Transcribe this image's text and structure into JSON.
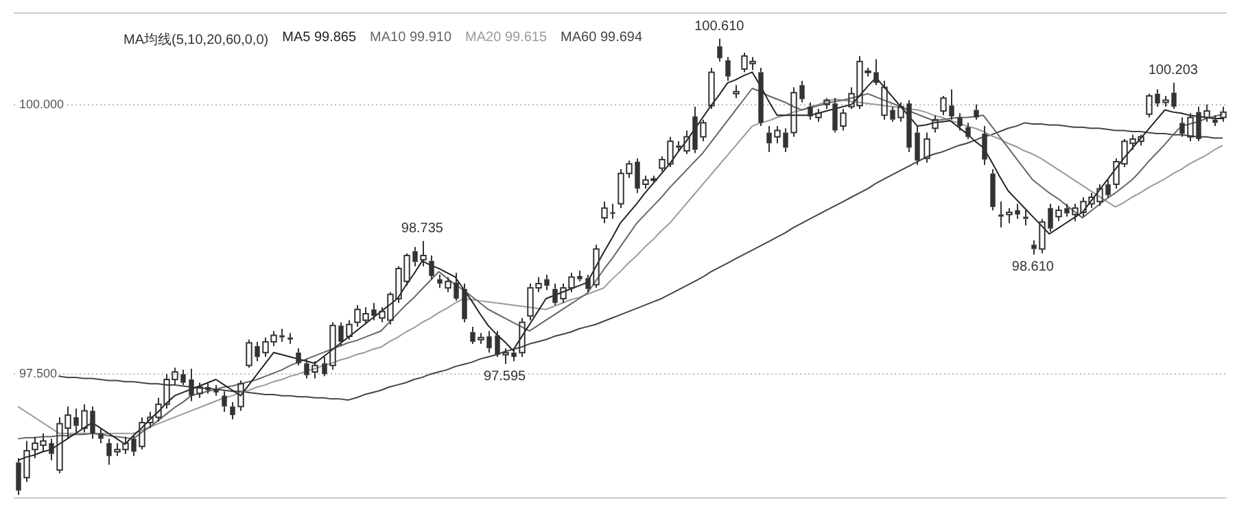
{
  "chart_data": {
    "type": "candlestick",
    "subtitle": "MA均线(5,10,20,60,0,0)",
    "categories": [
      null,
      null,
      null,
      null,
      null,
      null,
      null,
      null,
      null,
      null,
      null,
      null,
      null,
      null,
      null,
      null,
      null,
      null,
      null,
      null,
      null,
      null,
      null,
      null,
      null,
      null,
      null,
      null,
      null,
      null,
      null,
      null,
      null,
      null,
      null,
      null,
      null,
      null,
      null,
      null,
      null,
      null,
      null,
      null,
      null,
      null,
      null,
      null,
      null,
      null,
      null,
      null,
      null,
      null,
      null,
      null,
      null,
      null,
      null,
      null,
      null,
      null,
      null,
      null,
      null,
      null,
      null,
      null,
      null,
      null,
      null,
      null,
      null,
      null,
      null,
      null,
      null,
      null,
      null,
      null,
      null,
      null,
      null,
      null,
      null,
      null,
      null,
      null,
      null,
      null,
      null,
      null,
      null,
      null,
      null,
      null,
      null,
      null,
      null,
      null,
      null,
      null,
      null,
      null,
      null,
      null,
      null,
      null,
      null,
      null,
      null,
      null,
      null,
      null,
      null,
      null,
      null,
      null,
      null,
      null,
      null,
      null,
      null,
      null,
      null,
      null,
      null,
      null,
      null,
      null,
      null,
      null,
      null,
      null,
      null,
      null,
      null,
      null,
      null,
      null,
      null,
      null,
      null,
      null,
      null,
      null,
      null
    ],
    "color": "#333333",
    "ohlc": [
      [
        96.68,
        96.72,
        96.38,
        96.42
      ],
      [
        96.54,
        96.88,
        96.5,
        96.79
      ],
      [
        96.8,
        96.92,
        96.72,
        96.86
      ],
      [
        96.84,
        96.95,
        96.78,
        96.88
      ],
      [
        96.86,
        96.9,
        96.7,
        96.76
      ],
      [
        96.61,
        97.1,
        96.58,
        97.04
      ],
      [
        97,
        97.2,
        96.9,
        97.12
      ],
      [
        97.1,
        97.18,
        96.95,
        97.02
      ],
      [
        97,
        97.22,
        96.96,
        97.16
      ],
      [
        97.16,
        97.2,
        96.9,
        96.95
      ],
      [
        96.95,
        96.99,
        96.86,
        96.9
      ],
      [
        96.86,
        96.9,
        96.66,
        96.74
      ],
      [
        96.78,
        96.86,
        96.74,
        96.8
      ],
      [
        96.8,
        96.92,
        96.76,
        96.86
      ],
      [
        96.9,
        96.94,
        96.74,
        96.78
      ],
      [
        96.83,
        97.1,
        96.8,
        97.05
      ],
      [
        97.05,
        97.15,
        97,
        97.1
      ],
      [
        97.1,
        97.28,
        97.06,
        97.22
      ],
      [
        97.22,
        97.5,
        97.18,
        97.45
      ],
      [
        97.45,
        97.56,
        97.4,
        97.52
      ],
      [
        97.5,
        97.54,
        97.4,
        97.42
      ],
      [
        97.45,
        97.55,
        97.25,
        97.3
      ],
      [
        97.32,
        97.42,
        97.28,
        97.38
      ],
      [
        97.38,
        97.42,
        97.32,
        97.35
      ],
      [
        97.36,
        97.4,
        97.3,
        97.33
      ],
      [
        97.3,
        97.34,
        97.15,
        97.2
      ],
      [
        97.2,
        97.24,
        97.08,
        97.12
      ],
      [
        97.2,
        97.44,
        97.16,
        97.41
      ],
      [
        97.58,
        97.82,
        97.56,
        97.79
      ],
      [
        97.76,
        97.8,
        97.62,
        97.66
      ],
      [
        97.7,
        97.84,
        97.66,
        97.8
      ],
      [
        97.8,
        97.9,
        97.76,
        97.86
      ],
      [
        97.86,
        97.92,
        97.8,
        97.84
      ],
      [
        97.84,
        97.88,
        97.78,
        97.82
      ],
      [
        97.7,
        97.74,
        97.58,
        97.6
      ],
      [
        97.6,
        97.64,
        97.46,
        97.49
      ],
      [
        97.52,
        97.62,
        97.46,
        97.58
      ],
      [
        97.6,
        97.66,
        97.48,
        97.5
      ],
      [
        97.58,
        97.98,
        97.54,
        97.95
      ],
      [
        97.95,
        97.98,
        97.76,
        97.8
      ],
      [
        97.85,
        98,
        97.82,
        97.96
      ],
      [
        97.98,
        98.14,
        97.94,
        98.1
      ],
      [
        98,
        98.12,
        97.96,
        98.06
      ],
      [
        98.1,
        98.16,
        98,
        98.04
      ],
      [
        98.02,
        98.12,
        97.98,
        98.08
      ],
      [
        98,
        98.26,
        97.96,
        98.24
      ],
      [
        98.2,
        98.5,
        98.16,
        98.48
      ],
      [
        98.36,
        98.62,
        98.32,
        98.6
      ],
      [
        98.64,
        98.68,
        98.5,
        98.54
      ],
      [
        98.56,
        98.735,
        98.5,
        98.6
      ],
      [
        98.55,
        98.6,
        98.38,
        98.41
      ],
      [
        98.38,
        98.42,
        98.3,
        98.34
      ],
      [
        98.3,
        98.4,
        98.26,
        98.36
      ],
      [
        98.35,
        98.44,
        98.18,
        98.2
      ],
      [
        98.29,
        98.34,
        97.98,
        98.01
      ],
      [
        97.89,
        97.94,
        97.78,
        97.8
      ],
      [
        97.82,
        97.88,
        97.78,
        97.84
      ],
      [
        97.85,
        97.9,
        97.7,
        97.74
      ],
      [
        97.86,
        97.9,
        97.66,
        97.68
      ],
      [
        97.68,
        97.74,
        97.595,
        97.7
      ],
      [
        97.7,
        97.74,
        97.62,
        97.66
      ],
      [
        97.7,
        98.02,
        97.66,
        97.98
      ],
      [
        98.04,
        98.34,
        98,
        98.3
      ],
      [
        98.3,
        98.4,
        98.26,
        98.34
      ],
      [
        98.38,
        98.42,
        98.28,
        98.32
      ],
      [
        98.29,
        98.34,
        98.14,
        98.16
      ],
      [
        98.2,
        98.34,
        98.16,
        98.3
      ],
      [
        98.3,
        98.44,
        98.26,
        98.4
      ],
      [
        98.41,
        98.46,
        98.36,
        98.38
      ],
      [
        98.39,
        98.42,
        98.26,
        98.29
      ],
      [
        98.33,
        98.7,
        98.3,
        98.66
      ],
      [
        98.95,
        99.1,
        98.9,
        99.04
      ],
      [
        99,
        99.08,
        98.94,
        98.99
      ],
      [
        99.08,
        99.4,
        99.04,
        99.36
      ],
      [
        99.36,
        99.48,
        99.32,
        99.45
      ],
      [
        99.47,
        99.5,
        99.18,
        99.22
      ],
      [
        99.26,
        99.34,
        99.22,
        99.3
      ],
      [
        99.3,
        99.34,
        99.28,
        99.31
      ],
      [
        99.41,
        99.52,
        99.38,
        99.49
      ],
      [
        99.45,
        99.7,
        99.42,
        99.66
      ],
      [
        99.62,
        99.66,
        99.56,
        99.6
      ],
      [
        99.57,
        99.76,
        99.54,
        99.7
      ],
      [
        99.89,
        99.98,
        99.55,
        99.58
      ],
      [
        99.7,
        99.86,
        99.66,
        99.83
      ],
      [
        99.99,
        100.34,
        99.96,
        100.3
      ],
      [
        100.54,
        100.61,
        100.4,
        100.43
      ],
      [
        100.41,
        100.44,
        100.22,
        100.26
      ],
      [
        100.1,
        100.18,
        100.06,
        100.12
      ],
      [
        100.33,
        100.48,
        100.3,
        100.45
      ],
      [
        100.38,
        100.44,
        100.32,
        100.4
      ],
      [
        100.3,
        100.34,
        99.8,
        99.83
      ],
      [
        99.74,
        99.8,
        99.56,
        99.64
      ],
      [
        99.7,
        99.8,
        99.64,
        99.76
      ],
      [
        99.74,
        99.78,
        99.56,
        99.6
      ],
      [
        99.74,
        100.16,
        99.7,
        100.11
      ],
      [
        100.18,
        100.22,
        100.02,
        100.05
      ],
      [
        99.98,
        100.02,
        99.86,
        99.89
      ],
      [
        99.88,
        99.96,
        99.84,
        99.92
      ],
      [
        100,
        100.06,
        99.96,
        100.04
      ],
      [
        100.01,
        100.06,
        99.74,
        99.76
      ],
      [
        99.8,
        99.96,
        99.76,
        99.92
      ],
      [
        99.98,
        100.16,
        99.96,
        100.1
      ],
      [
        99.99,
        100.45,
        99.96,
        100.4
      ],
      [
        100.3,
        100.34,
        100.26,
        100.31
      ],
      [
        100.3,
        100.42,
        100.18,
        100.2
      ],
      [
        99.9,
        100.22,
        99.86,
        100.16
      ],
      [
        99.95,
        99.98,
        99.84,
        99.86
      ],
      [
        99.88,
        100.02,
        99.84,
        99.98
      ],
      [
        100.01,
        100.04,
        99.56,
        99.6
      ],
      [
        99.74,
        99.8,
        99.44,
        99.48
      ],
      [
        99.5,
        99.74,
        99.46,
        99.68
      ],
      [
        99.78,
        99.9,
        99.74,
        99.86
      ],
      [
        99.94,
        100.08,
        99.9,
        100.06
      ],
      [
        99.99,
        100.14,
        99.86,
        99.89
      ],
      [
        99.88,
        99.92,
        99.76,
        99.8
      ],
      [
        99.79,
        99.83,
        99.68,
        99.7
      ],
      [
        99.95,
        100,
        99.86,
        99.88
      ],
      [
        99.73,
        99.8,
        99.44,
        99.49
      ],
      [
        99.36,
        99.4,
        99.02,
        99.05
      ],
      [
        98.98,
        99.1,
        98.86,
        98.96
      ],
      [
        98.98,
        99.04,
        98.9,
        99
      ],
      [
        99.02,
        99.08,
        98.94,
        98.98
      ],
      [
        98.96,
        99.02,
        98.88,
        98.94
      ],
      [
        98.7,
        98.74,
        98.61,
        98.66
      ],
      [
        98.66,
        98.94,
        98.62,
        98.91
      ],
      [
        99.04,
        99.08,
        98.82,
        98.85
      ],
      [
        98.96,
        99.06,
        98.92,
        99.02
      ],
      [
        99.04,
        99.08,
        98.96,
        98.99
      ],
      [
        98.98,
        99.08,
        98.92,
        99.04
      ],
      [
        99,
        99.14,
        98.96,
        99.1
      ],
      [
        99.08,
        99.18,
        99.04,
        99.14
      ],
      [
        99.1,
        99.26,
        99.06,
        99.22
      ],
      [
        99.26,
        99.3,
        99.14,
        99.16
      ],
      [
        99.26,
        99.5,
        99.22,
        99.47
      ],
      [
        99.45,
        99.68,
        99.42,
        99.66
      ],
      [
        99.64,
        99.72,
        99.58,
        99.68
      ],
      [
        99.66,
        99.72,
        99.62,
        99.7
      ],
      [
        99.91,
        100.1,
        99.88,
        100.08
      ],
      [
        100.1,
        100.14,
        99.98,
        100.01
      ],
      [
        100.02,
        100.08,
        99.98,
        100.04
      ],
      [
        100.11,
        100.203,
        99.96,
        99.98
      ],
      [
        99.83,
        99.88,
        99.7,
        99.73
      ],
      [
        99.7,
        99.92,
        99.66,
        99.88
      ],
      [
        99.93,
        99.98,
        99.66,
        99.68
      ],
      [
        99.88,
        100,
        99.84,
        99.94
      ],
      [
        99.86,
        99.9,
        99.8,
        99.83
      ],
      [
        99.88,
        99.98,
        99.84,
        99.93
      ]
    ],
    "series": [
      {
        "type": "line",
        "color": "#222222",
        "values": [
          96.7,
          96.73,
          96.75,
          96.78,
          96.8,
          96.85,
          96.9,
          96.95,
          97,
          97.05,
          97,
          96.95,
          96.9,
          96.85,
          96.93,
          97,
          97.08,
          97.15,
          97.23,
          97.3,
          97.33,
          97.36,
          97.39,
          97.42,
          97.45,
          97.4,
          97.35,
          97.3,
          97.4,
          97.5,
          97.6,
          97.7,
          97.68,
          97.66,
          97.64,
          97.62,
          97.6,
          97.66,
          97.72,
          97.78,
          97.84,
          97.9,
          97.96,
          98.02,
          98.08,
          98.14,
          98.2,
          98.32,
          98.43,
          98.55,
          98.51,
          98.48,
          98.44,
          98.4,
          98.29,
          98.18,
          98.06,
          97.95,
          97.87,
          97.8,
          97.72,
          97.84,
          97.96,
          98.08,
          98.2,
          98.23,
          98.26,
          98.29,
          98.32,
          98.35,
          98.49,
          98.63,
          98.76,
          98.9,
          98.99,
          99.08,
          99.18,
          99.27,
          99.36,
          99.45,
          99.56,
          99.66,
          99.77,
          99.88,
          99.99,
          100.09,
          100.2,
          100.23,
          100.27,
          100.3,
          100.17,
          100.03,
          99.9,
          99.9,
          99.9,
          99.9,
          99.9,
          99.92,
          99.94,
          99.96,
          99.98,
          100,
          100.08,
          100.17,
          100.25,
          100.16,
          100.07,
          99.98,
          99.89,
          99.8,
          99.81,
          99.83,
          99.84,
          99.85,
          99.79,
          99.73,
          99.66,
          99.6,
          99.47,
          99.33,
          99.2,
          99.12,
          99.04,
          98.96,
          98.88,
          98.8,
          98.85,
          98.9,
          98.95,
          99,
          99.1,
          99.2,
          99.3,
          99.4,
          99.5,
          99.59,
          99.68,
          99.77,
          99.86,
          99.95,
          99.93,
          99.92,
          99.9,
          99.89,
          99.88,
          99.87,
          99.87
        ]
      },
      {
        "type": "line",
        "color": "#666666",
        "values": [
          96.9,
          96.91,
          96.91,
          96.92,
          96.92,
          96.93,
          96.93,
          96.94,
          96.94,
          96.95,
          96.94,
          96.93,
          96.92,
          96.91,
          96.9,
          96.96,
          97.01,
          97.07,
          97.13,
          97.19,
          97.24,
          97.3,
          97.32,
          97.34,
          97.36,
          97.38,
          97.39,
          97.41,
          97.43,
          97.45,
          97.48,
          97.51,
          97.54,
          97.58,
          97.61,
          97.64,
          97.67,
          97.7,
          97.73,
          97.76,
          97.79,
          97.81,
          97.84,
          97.87,
          97.9,
          97.98,
          98.06,
          98.14,
          98.21,
          98.29,
          98.37,
          98.45,
          98.39,
          98.33,
          98.28,
          98.22,
          98.16,
          98.1,
          98.06,
          98.02,
          97.98,
          97.94,
          97.9,
          97.95,
          98,
          98.05,
          98.1,
          98.15,
          98.2,
          98.25,
          98.36,
          98.47,
          98.57,
          98.68,
          98.79,
          98.9,
          98.98,
          99.06,
          99.14,
          99.23,
          99.31,
          99.39,
          99.47,
          99.55,
          99.65,
          99.75,
          99.85,
          99.95,
          100.05,
          100.15,
          100.12,
          100.08,
          100.05,
          100.02,
          99.98,
          99.95,
          99.97,
          99.99,
          100.01,
          100.03,
          100.04,
          100.06,
          100.08,
          100.1,
          100.07,
          100.04,
          100.01,
          99.98,
          99.94,
          99.91,
          99.88,
          99.85,
          99.86,
          99.87,
          99.88,
          99.88,
          99.89,
          99.9,
          99.8,
          99.7,
          99.6,
          99.5,
          99.4,
          99.3,
          99.24,
          99.18,
          99.13,
          99.07,
          99.01,
          98.95,
          99.01,
          99.07,
          99.13,
          99.18,
          99.24,
          99.3,
          99.38,
          99.47,
          99.55,
          99.63,
          99.72,
          99.8,
          99.82,
          99.84,
          99.87,
          99.89,
          99.91
        ]
      },
      {
        "type": "line",
        "color": "#9a9a9a",
        "values": [
          97.2,
          97.15,
          97.1,
          97.05,
          97,
          96.95,
          96.95,
          96.95,
          96.95,
          96.95,
          96.95,
          96.95,
          96.95,
          96.95,
          96.95,
          96.98,
          97.01,
          97.04,
          97.07,
          97.1,
          97.13,
          97.16,
          97.19,
          97.22,
          97.25,
          97.28,
          97.3,
          97.33,
          97.35,
          97.38,
          97.4,
          97.43,
          97.45,
          97.48,
          97.5,
          97.53,
          97.55,
          97.58,
          97.6,
          97.63,
          97.65,
          97.68,
          97.7,
          97.73,
          97.75,
          97.8,
          97.84,
          97.89,
          97.93,
          97.98,
          98.02,
          98.07,
          98.11,
          98.16,
          98.2,
          98.19,
          98.18,
          98.17,
          98.16,
          98.15,
          98.14,
          98.13,
          98.12,
          98.11,
          98.1,
          98.13,
          98.16,
          98.19,
          98.21,
          98.24,
          98.27,
          98.3,
          98.38,
          98.45,
          98.53,
          98.6,
          98.68,
          98.75,
          98.83,
          98.9,
          98.99,
          99.08,
          99.17,
          99.26,
          99.35,
          99.44,
          99.53,
          99.62,
          99.71,
          99.8,
          99.83,
          99.85,
          99.88,
          99.9,
          99.93,
          99.95,
          99.98,
          100,
          100.03,
          100.05,
          100.04,
          100.03,
          100.02,
          100.01,
          100,
          99.99,
          99.98,
          99.97,
          99.96,
          99.95,
          99.93,
          99.9,
          99.88,
          99.85,
          99.83,
          99.8,
          99.78,
          99.75,
          99.71,
          99.68,
          99.64,
          99.61,
          99.57,
          99.54,
          99.5,
          99.45,
          99.4,
          99.35,
          99.3,
          99.25,
          99.2,
          99.15,
          99.1,
          99.05,
          99.09,
          99.14,
          99.18,
          99.23,
          99.27,
          99.31,
          99.36,
          99.4,
          99.45,
          99.49,
          99.53,
          99.58,
          99.62
        ]
      },
      {
        "type": "line",
        "color": "#444444",
        "values": [
          97.51,
          97.5,
          97.5,
          97.49,
          97.49,
          97.48,
          97.47,
          97.47,
          97.46,
          97.46,
          97.45,
          97.44,
          97.44,
          97.43,
          97.43,
          97.42,
          97.41,
          97.41,
          97.4,
          97.4,
          97.39,
          97.38,
          97.37,
          97.37,
          97.36,
          97.35,
          97.34,
          97.34,
          97.33,
          97.32,
          97.31,
          97.31,
          97.3,
          97.3,
          97.29,
          97.29,
          97.28,
          97.28,
          97.27,
          97.27,
          97.26,
          97.28,
          97.31,
          97.33,
          97.35,
          97.38,
          97.4,
          97.42,
          97.45,
          97.47,
          97.5,
          97.52,
          97.54,
          97.57,
          97.59,
          97.61,
          97.64,
          97.66,
          97.68,
          97.71,
          97.73,
          97.75,
          97.78,
          97.8,
          97.82,
          97.85,
          97.87,
          97.89,
          97.92,
          97.94,
          97.96,
          97.99,
          98.02,
          98.05,
          98.08,
          98.11,
          98.14,
          98.17,
          98.2,
          98.24,
          98.28,
          98.32,
          98.36,
          98.4,
          98.45,
          98.49,
          98.53,
          98.57,
          98.61,
          98.65,
          98.69,
          98.73,
          98.77,
          98.81,
          98.86,
          98.9,
          98.94,
          98.98,
          99.02,
          99.06,
          99.1,
          99.14,
          99.18,
          99.22,
          99.27,
          99.31,
          99.35,
          99.39,
          99.43,
          99.47,
          99.51,
          99.54,
          99.56,
          99.59,
          99.62,
          99.64,
          99.67,
          99.7,
          99.72,
          99.75,
          99.78,
          99.8,
          99.83,
          99.82,
          99.82,
          99.81,
          99.81,
          99.8,
          99.79,
          99.79,
          99.78,
          99.78,
          99.77,
          99.76,
          99.76,
          99.75,
          99.75,
          99.74,
          99.73,
          99.73,
          99.72,
          99.72,
          99.71,
          99.7,
          99.7,
          99.69,
          99.69
        ]
      }
    ],
    "ylim": [
      96.35,
      100.85
    ],
    "yticks": [
      {
        "value": 100,
        "label": "100.000"
      },
      {
        "value": 97.5,
        "label": "97.500"
      }
    ],
    "grid": "y",
    "tick_labels": "y",
    "annotations": [
      "MA5 99.865",
      "MA10 99.910",
      "MA20 99.615",
      "MA60 99.694",
      {
        "text": "98.735",
        "y": 98.735
      },
      {
        "text": "97.595",
        "y": 97.595
      },
      {
        "text": "100.610",
        "y": 100.61
      },
      {
        "text": "98.610",
        "y": 98.61
      },
      {
        "text": "100.203",
        "y": 100.203
      }
    ]
  }
}
